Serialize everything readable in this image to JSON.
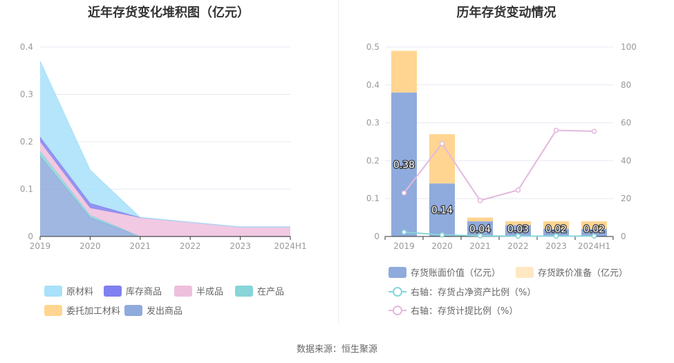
{
  "footer": {
    "source": "数据来源：恒生聚源"
  },
  "chart_data": [
    {
      "type": "area",
      "stacked": true,
      "title": "近年存货变化堆积图（亿元）",
      "categories": [
        "2019",
        "2020",
        "2021",
        "2022",
        "2023",
        "2024H1"
      ],
      "ylim": [
        0,
        0.4
      ],
      "yticks": [
        "0",
        "0.1",
        "0.2",
        "0.3",
        "0.4"
      ],
      "grid": true,
      "legend_position": "bottom",
      "series": [
        {
          "name": "发出商品",
          "color": "#8faadc",
          "values": [
            0.17,
            0.04,
            0.0,
            0.0,
            0.0,
            0.0
          ]
        },
        {
          "name": "委托加工材料",
          "color": "#ffd591",
          "values": [
            0.0,
            0.0,
            0.0,
            0.0,
            0.0,
            0.0
          ]
        },
        {
          "name": "在产品",
          "color": "#87d5d9",
          "values": [
            0.01,
            0.005,
            0.0,
            0.0,
            0.0,
            0.0
          ]
        },
        {
          "name": "半成品",
          "color": "#eebfdd",
          "values": [
            0.02,
            0.015,
            0.04,
            0.03,
            0.02,
            0.02
          ]
        },
        {
          "name": "库存商品",
          "color": "#8080f0",
          "values": [
            0.01,
            0.01,
            0.0,
            0.0,
            0.0,
            0.0
          ]
        },
        {
          "name": "原材料",
          "color": "#a8e1f9",
          "values": [
            0.16,
            0.07,
            0.0,
            0.0,
            0.0,
            0.0
          ]
        }
      ],
      "legend_order": [
        "原材料",
        "库存商品",
        "半成品",
        "在产品",
        "委托加工材料",
        "发出商品"
      ]
    },
    {
      "type": "bar+line",
      "title": "历年存货变动情况",
      "categories": [
        "2019",
        "2020",
        "2021",
        "2022",
        "2023",
        "2024H1"
      ],
      "ylim_left": [
        0,
        0.5
      ],
      "yticks_left": [
        "0",
        "0.1",
        "0.2",
        "0.3",
        "0.4",
        "0.5"
      ],
      "ylim_right": [
        0,
        100
      ],
      "yticks_right": [
        "0",
        "20",
        "40",
        "60",
        "80",
        "100"
      ],
      "grid": true,
      "legend_position": "bottom",
      "bar_series": [
        {
          "name": "存货账面价值（亿元）",
          "color": "#8faadc",
          "values": [
            0.38,
            0.14,
            0.04,
            0.03,
            0.02,
            0.02
          ],
          "labels": [
            "0.38",
            "0.14",
            "0.04",
            "0.03",
            "0.02",
            "0.02"
          ]
        },
        {
          "name": "存货跌价准备（亿元）",
          "color": "#ffd591",
          "legend_color": "#ffe7c2",
          "values": [
            0.11,
            0.13,
            0.01,
            0.01,
            0.02,
            0.02
          ]
        }
      ],
      "line_series": [
        {
          "name": "右轴：存货占净资产比例（%）",
          "color": "#87d5d9",
          "values": [
            2.3,
            0.8,
            0.3,
            0.2,
            0.2,
            0.2
          ]
        },
        {
          "name": "右轴：存货计提比例（%）",
          "color": "#e3b8de",
          "values": [
            23,
            49,
            19,
            24.5,
            56,
            55.5
          ]
        }
      ]
    }
  ]
}
